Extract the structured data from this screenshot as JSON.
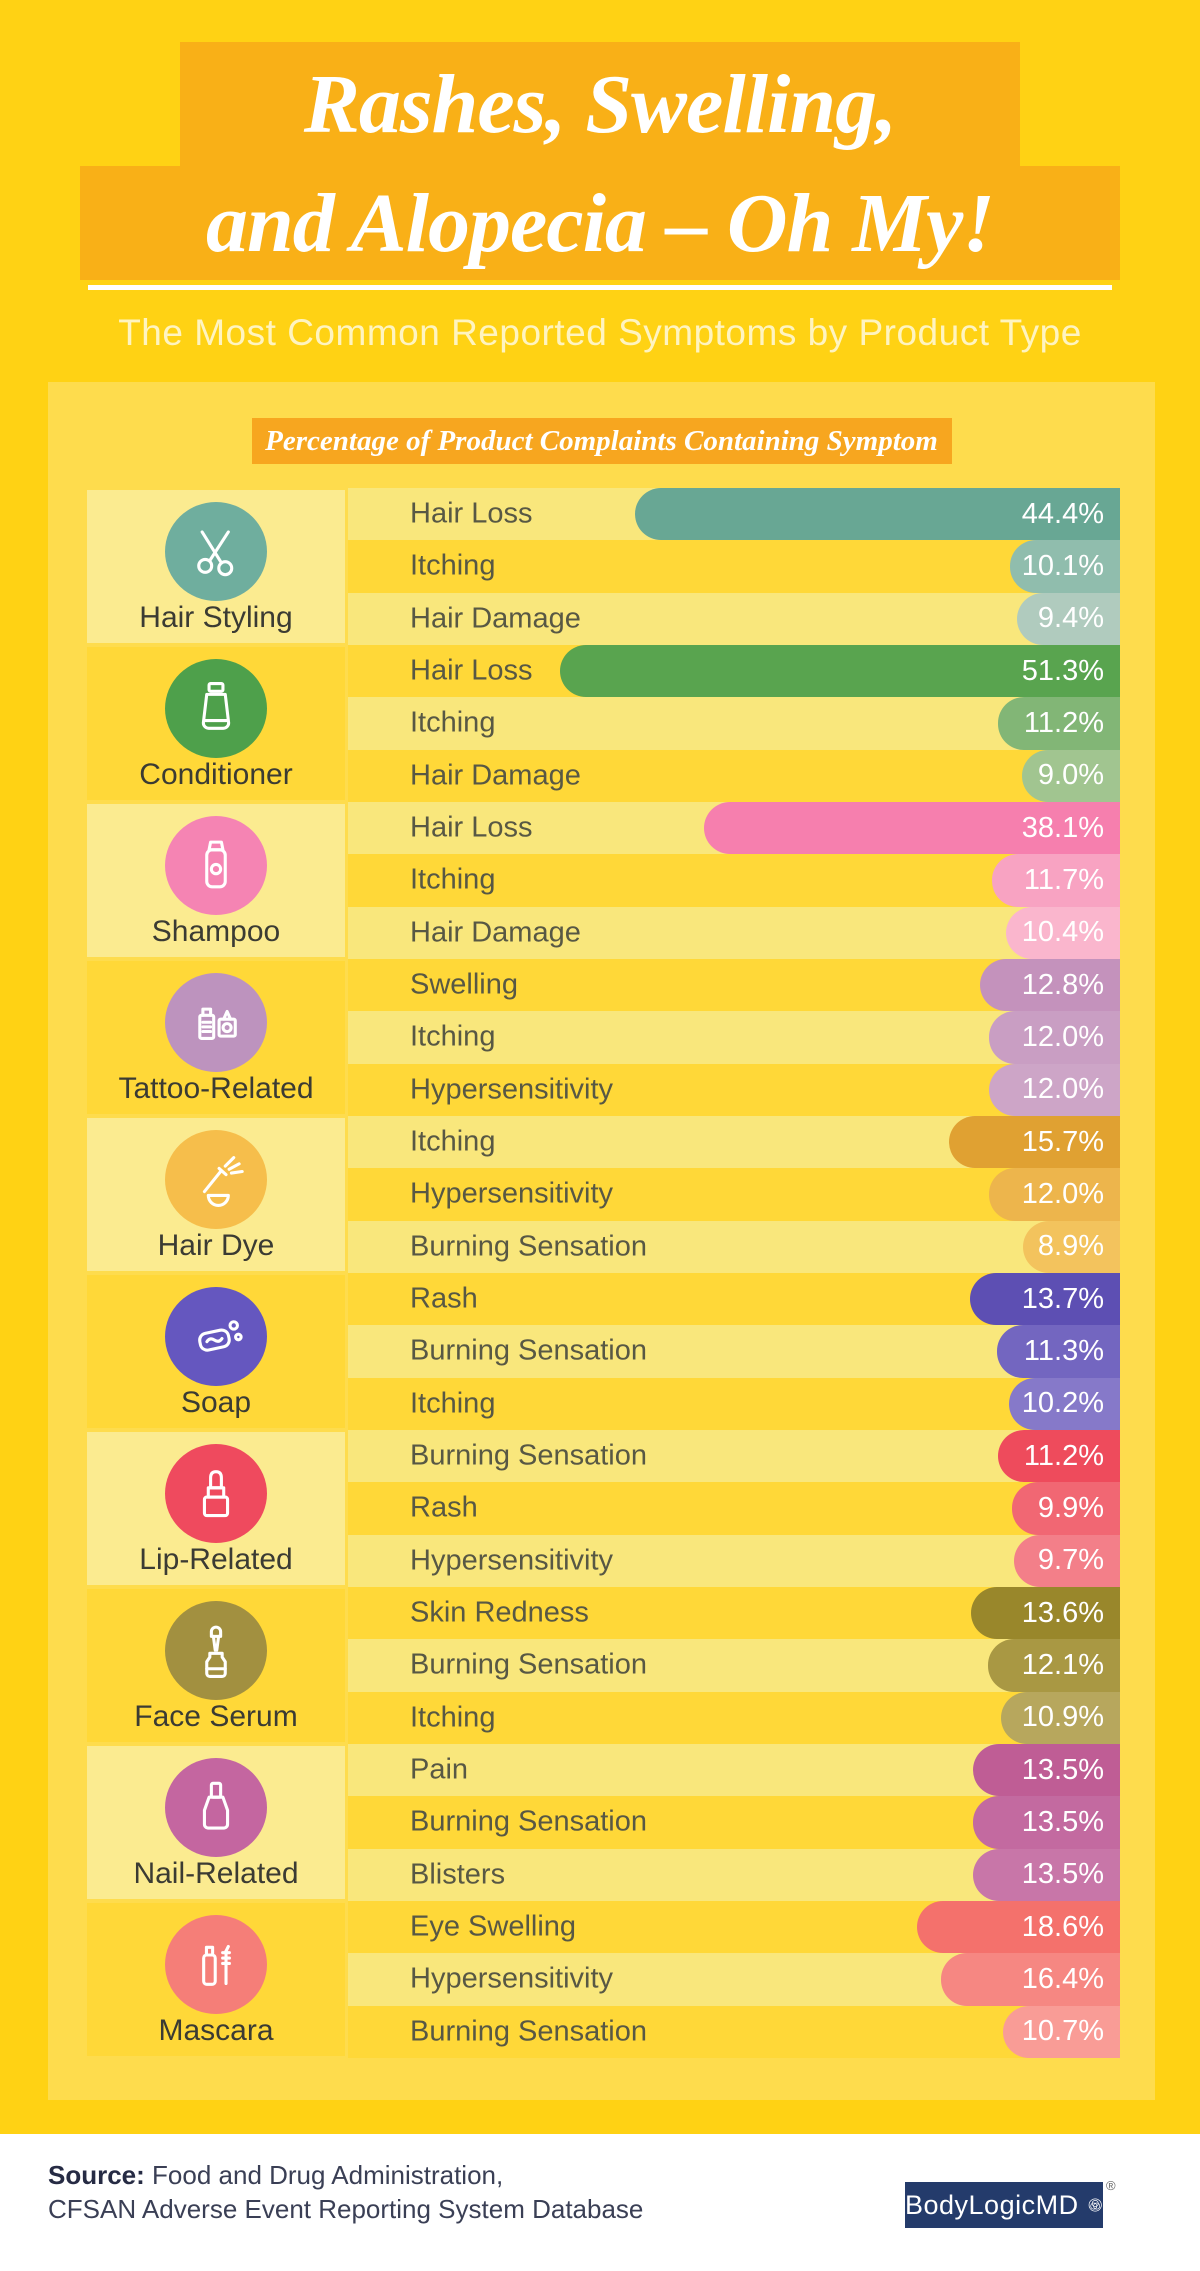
{
  "header": {
    "title_line1": "Rashes, Swelling,",
    "title_line2": "and Alopecia – Oh My!",
    "subtitle": "The Most Common Reported Symptoms by Product Type"
  },
  "chart_header": "Percentage of Product Complaints Containing Symptom",
  "colors": {
    "background": "#FFD214",
    "title_box": "#F9B017",
    "chart_header_bar": "#F7A61F",
    "panel": "#FEDC4D",
    "stripe_light": "#F9E77C",
    "stripe_dark": "#FFD838",
    "category_block_light": "#FBEB90",
    "footer_background": "#FFFFFF",
    "logo_background": "#243B6B"
  },
  "chart_data": {
    "type": "bar",
    "orientation": "horizontal",
    "title": "Percentage of Product Complaints Containing Symptom",
    "unit": "%",
    "groups": [
      {
        "category": "Hair Styling",
        "icon": "scissors-icon",
        "icon_color": "#6FAE9E",
        "rows": [
          {
            "label": "Hair Loss",
            "value": 44.4,
            "color": "#68A794"
          },
          {
            "label": "Itching",
            "value": 10.1,
            "color": "#90BDAD"
          },
          {
            "label": "Hair Damage",
            "value": 9.4,
            "color": "#B0CBBE"
          }
        ]
      },
      {
        "category": "Conditioner",
        "icon": "conditioner-tube-icon",
        "icon_color": "#4EA04B",
        "rows": [
          {
            "label": "Hair Loss",
            "value": 51.3,
            "color": "#59A44F"
          },
          {
            "label": "Itching",
            "value": 11.2,
            "color": "#82B676"
          },
          {
            "label": "Hair Damage",
            "value": 9.0,
            "color": "#A1C590"
          }
        ]
      },
      {
        "category": "Shampoo",
        "icon": "shampoo-bottle-icon",
        "icon_color": "#F584B3",
        "rows": [
          {
            "label": "Hair Loss",
            "value": 38.1,
            "color": "#F67FAE"
          },
          {
            "label": "Itching",
            "value": 11.7,
            "color": "#F8A3C2"
          },
          {
            "label": "Hair Damage",
            "value": 10.4,
            "color": "#FAB6CD"
          }
        ]
      },
      {
        "category": "Tattoo-Related",
        "icon": "tattoo-machine-icon",
        "icon_color": "#BD93BE",
        "rows": [
          {
            "label": "Swelling",
            "value": 12.8,
            "color": "#C492BC"
          },
          {
            "label": "Itching",
            "value": 12.0,
            "color": "#C99EC3"
          },
          {
            "label": "Hypersensitivity",
            "value": 12.0,
            "color": "#CDA5C7"
          }
        ]
      },
      {
        "category": "Hair Dye",
        "icon": "dye-brush-icon",
        "icon_color": "#F6BE4B",
        "rows": [
          {
            "label": "Itching",
            "value": 15.7,
            "color": "#E0A132"
          },
          {
            "label": "Hypersensitivity",
            "value": 12.0,
            "color": "#EDB54C"
          },
          {
            "label": "Burning Sensation",
            "value": 8.9,
            "color": "#F3C35D"
          }
        ]
      },
      {
        "category": "Soap",
        "icon": "soap-bar-icon",
        "icon_color": "#6557BF",
        "rows": [
          {
            "label": "Rash",
            "value": 13.7,
            "color": "#5D4FB3"
          },
          {
            "label": "Burning Sensation",
            "value": 11.3,
            "color": "#7366C0"
          },
          {
            "label": "Itching",
            "value": 10.2,
            "color": "#8679C9"
          }
        ]
      },
      {
        "category": "Lip-Related",
        "icon": "lipstick-icon",
        "icon_color": "#EF4A5E",
        "rows": [
          {
            "label": "Burning Sensation",
            "value": 11.2,
            "color": "#EE4B5C"
          },
          {
            "label": "Rash",
            "value": 9.9,
            "color": "#F16773"
          },
          {
            "label": "Hypersensitivity",
            "value": 9.7,
            "color": "#F37F89"
          }
        ]
      },
      {
        "category": "Face Serum",
        "icon": "serum-dropper-icon",
        "icon_color": "#A29040",
        "rows": [
          {
            "label": "Skin Redness",
            "value": 13.6,
            "color": "#99872B"
          },
          {
            "label": "Burning Sensation",
            "value": 12.1,
            "color": "#A99843"
          },
          {
            "label": "Itching",
            "value": 10.9,
            "color": "#B7A75D"
          }
        ]
      },
      {
        "category": "Nail-Related",
        "icon": "nail-polish-icon",
        "icon_color": "#C466A0",
        "rows": [
          {
            "label": "Pain",
            "value": 13.5,
            "color": "#BF5D95"
          },
          {
            "label": "Burning Sensation",
            "value": 13.5,
            "color": "#C36AA0"
          },
          {
            "label": "Blisters",
            "value": 13.5,
            "color": "#C876A8"
          }
        ]
      },
      {
        "category": "Mascara",
        "icon": "mascara-icon",
        "icon_color": "#F57E78",
        "rows": [
          {
            "label": "Eye Swelling",
            "value": 18.6,
            "color": "#F4716C"
          },
          {
            "label": "Hypersensitivity",
            "value": 16.4,
            "color": "#F68782"
          },
          {
            "label": "Burning Sensation",
            "value": 10.7,
            "color": "#F99C96"
          }
        ]
      }
    ]
  },
  "footer": {
    "source_label": "Source:",
    "source_text": " Food and Drug Administration,",
    "source_text2": "CFSAN Adverse Event Reporting System Database",
    "logo_text": "BodyLogicMD",
    "registered_mark": "®"
  }
}
